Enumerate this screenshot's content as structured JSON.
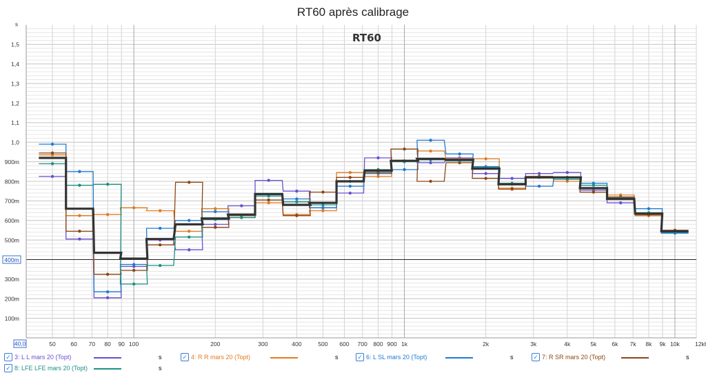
{
  "chart_data": {
    "type": "line",
    "title": "RT60 après calibrage",
    "inner_title": "RT60",
    "y_unit": "s",
    "xscale": "log",
    "xlim": [
      40,
      12000
    ],
    "ylim": [
      0,
      1.6
    ],
    "x_ticks": [
      {
        "v": 40,
        "label": "40,0"
      },
      {
        "v": 50,
        "label": "50"
      },
      {
        "v": 60,
        "label": "60"
      },
      {
        "v": 70,
        "label": "70"
      },
      {
        "v": 80,
        "label": "80"
      },
      {
        "v": 90,
        "label": "90"
      },
      {
        "v": 100,
        "label": "100"
      },
      {
        "v": 200,
        "label": "200"
      },
      {
        "v": 300,
        "label": "300"
      },
      {
        "v": 400,
        "label": "400"
      },
      {
        "v": 500,
        "label": "500"
      },
      {
        "v": 600,
        "label": "600"
      },
      {
        "v": 700,
        "label": "700"
      },
      {
        "v": 800,
        "label": "800"
      },
      {
        "v": 900,
        "label": "900"
      },
      {
        "v": 1000,
        "label": "1k"
      },
      {
        "v": 2000,
        "label": "2k"
      },
      {
        "v": 3000,
        "label": "3k"
      },
      {
        "v": 4000,
        "label": "4k"
      },
      {
        "v": 5000,
        "label": "5k"
      },
      {
        "v": 6000,
        "label": "6k"
      },
      {
        "v": 7000,
        "label": "7k"
      },
      {
        "v": 8000,
        "label": "8k"
      },
      {
        "v": 9000,
        "label": "9k"
      },
      {
        "v": 10000,
        "label": "10k"
      },
      {
        "v": 12000,
        "label": "12kHz"
      }
    ],
    "y_ticks": [
      {
        "v": 0.1,
        "label": "100m"
      },
      {
        "v": 0.2,
        "label": "200m"
      },
      {
        "v": 0.3,
        "label": "300m"
      },
      {
        "v": 0.4,
        "label": "400m"
      },
      {
        "v": 0.5,
        "label": "500m"
      },
      {
        "v": 0.6,
        "label": "600m"
      },
      {
        "v": 0.7,
        "label": "700m"
      },
      {
        "v": 0.8,
        "label": "800m"
      },
      {
        "v": 0.9,
        "label": "900m"
      },
      {
        "v": 1.0,
        "label": "1,0"
      },
      {
        "v": 1.1,
        "label": "1,1"
      },
      {
        "v": 1.2,
        "label": "1,2"
      },
      {
        "v": 1.3,
        "label": "1,3"
      },
      {
        "v": 1.4,
        "label": "1,4"
      },
      {
        "v": 1.5,
        "label": "1,5"
      }
    ],
    "highlight_y": 0.4,
    "bands": [
      50,
      63,
      80,
      100,
      125,
      160,
      200,
      250,
      315,
      400,
      500,
      630,
      800,
      1000,
      1250,
      1600,
      2000,
      2500,
      3150,
      4000,
      5000,
      6300,
      8000,
      10000
    ],
    "series": [
      {
        "name": "3: L L mars 20 (Topt)",
        "color": "#6a4fd0",
        "width": 1.3,
        "values": [
          0.825,
          0.505,
          0.205,
          0.365,
          0.5,
          0.45,
          0.58,
          0.675,
          0.805,
          0.75,
          0.665,
          0.74,
          0.92,
          0.905,
          0.895,
          0.92,
          0.84,
          0.815,
          0.84,
          0.845,
          0.755,
          0.69,
          0.625,
          0.545
        ]
      },
      {
        "name": "4: R R mars 20 (Topt)",
        "color": "#e07b20",
        "width": 1.3,
        "values": [
          0.935,
          0.625,
          0.63,
          0.665,
          0.65,
          0.545,
          0.66,
          0.615,
          0.69,
          0.63,
          0.65,
          0.845,
          0.825,
          0.905,
          0.955,
          0.915,
          0.915,
          0.765,
          0.825,
          0.8,
          0.745,
          0.73,
          0.625,
          0.545
        ]
      },
      {
        "name": "6: L SL mars 20 (Topt)",
        "color": "#1f7ad0",
        "width": 1.3,
        "values": [
          0.99,
          0.85,
          0.235,
          0.375,
          0.56,
          0.6,
          0.645,
          0.615,
          0.725,
          0.71,
          0.665,
          0.775,
          0.84,
          0.86,
          1.01,
          0.94,
          0.875,
          0.785,
          0.775,
          0.82,
          0.79,
          0.715,
          0.66,
          0.535
        ]
      },
      {
        "name": "7: R SR mars 20 (Topt)",
        "color": "#8b4513",
        "width": 1.3,
        "values": [
          0.945,
          0.545,
          0.325,
          0.345,
          0.475,
          0.795,
          0.565,
          0.625,
          0.705,
          0.625,
          0.745,
          0.82,
          0.845,
          0.965,
          0.8,
          0.895,
          0.815,
          0.76,
          0.825,
          0.82,
          0.745,
          0.72,
          0.63,
          0.55
        ]
      },
      {
        "name": "8: LFE LFE mars 20 (Topt)",
        "color": "#1a9080",
        "width": 1.3,
        "values": [
          0.89,
          0.78,
          0.785,
          0.275,
          0.37,
          0.515,
          0.605,
          0.615,
          0.725,
          0.695,
          0.68,
          0.8,
          0.86,
          0.9,
          0.91,
          0.905,
          0.87,
          0.79,
          0.82,
          0.81,
          0.78,
          0.715,
          0.64,
          0.54
        ]
      },
      {
        "name": "",
        "color": "#333333",
        "width": 3.2,
        "values": [
          0.92,
          0.66,
          0.435,
          0.405,
          0.505,
          0.58,
          0.61,
          0.63,
          0.735,
          0.68,
          0.69,
          0.8,
          0.855,
          0.905,
          0.915,
          0.91,
          0.865,
          0.785,
          0.82,
          0.82,
          0.765,
          0.71,
          0.635,
          0.545
        ]
      }
    ]
  },
  "legend": [
    {
      "label": "3: L L mars 20 (Topt)",
      "unit": "s",
      "color": "#6a4fd0",
      "checked": "✓"
    },
    {
      "label": "4: R R mars 20 (Topt)",
      "unit": "s",
      "color": "#e07b20",
      "checked": "✓"
    },
    {
      "label": "6: L SL mars 20 (Topt)",
      "unit": "s",
      "color": "#1f7ad0",
      "checked": "✓"
    },
    {
      "label": "7: R SR mars 20 (Topt)",
      "unit": "s",
      "color": "#8b4513",
      "checked": "✓"
    },
    {
      "label": "8: LFE LFE mars 20 (Topt)",
      "unit": "s",
      "color": "#1a9080",
      "checked": "✓"
    }
  ]
}
